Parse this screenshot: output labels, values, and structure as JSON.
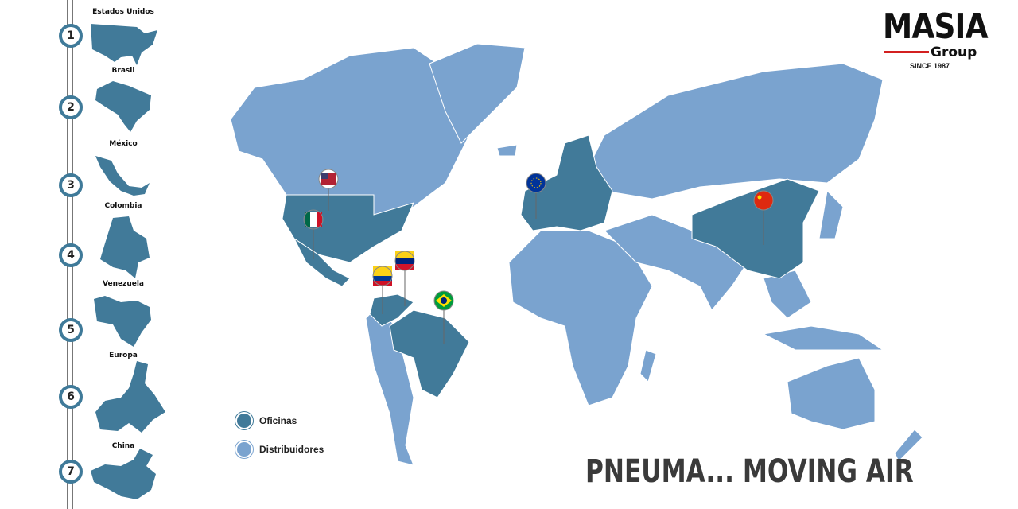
{
  "colors": {
    "offices": "#417a99",
    "distributors": "#7aa3cf",
    "rail": "#777777"
  },
  "sidebar": {
    "items": [
      {
        "number": "1",
        "label": "Estados Unidos"
      },
      {
        "number": "2",
        "label": "Brasil"
      },
      {
        "number": "3",
        "label": "México"
      },
      {
        "number": "4",
        "label": "Colombia"
      },
      {
        "number": "5",
        "label": "Venezuela"
      },
      {
        "number": "6",
        "label": "Europa"
      },
      {
        "number": "7",
        "label": "China"
      }
    ]
  },
  "logo": {
    "name": "MASIA",
    "sub": "Group",
    "since": "SINCE 1987"
  },
  "legend": [
    {
      "label": "Oficinas"
    },
    {
      "label": "Distribuidores"
    }
  ],
  "slogan": "PNEUMA... MOVING AIR",
  "pins": [
    "usa-flag",
    "mexico-flag",
    "venezuela-flag",
    "colombia-flag",
    "brazil-flag",
    "eu-flag",
    "china-flag"
  ]
}
